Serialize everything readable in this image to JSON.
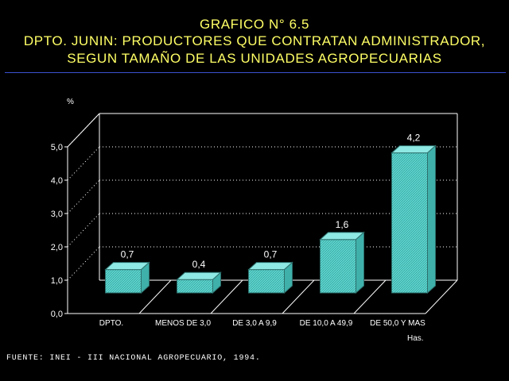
{
  "header": {
    "line1": "GRAFICO N° 6.5",
    "line2": "DPTO. JUNIN: PRODUCTORES QUE CONTRATAN ADMINISTRADOR,",
    "line3": "SEGUN TAMAÑO DE LAS UNIDADES AGROPECUARIAS"
  },
  "source": "FUENTE: INEI - III NACIONAL AGROPECUARIO, 1994.",
  "colors": {
    "background": "#000000",
    "title": "#ffff66",
    "bar": "#5fd6d0",
    "axes": "#ffffff",
    "rule": "#3a4fd0"
  },
  "chart_data": {
    "type": "bar",
    "categories": [
      "DPTO.",
      "MENOS DE 3,0",
      "DE 3,0  A 9,9",
      "DE 10,0  A 49,9",
      "DE 50,0 Y MAS"
    ],
    "values": [
      0.7,
      0.4,
      0.7,
      1.6,
      4.2
    ],
    "value_labels": [
      "0,7",
      "0,4",
      "0,7",
      "1,6",
      "4,2"
    ],
    "ylabel": "%",
    "xlabel": "Has.",
    "ylim": [
      0,
      5
    ],
    "yticks": [
      "0,0",
      "1,0",
      "2,0",
      "3,0",
      "4,0",
      "5,0"
    ],
    "grid": true,
    "style": "3d"
  }
}
